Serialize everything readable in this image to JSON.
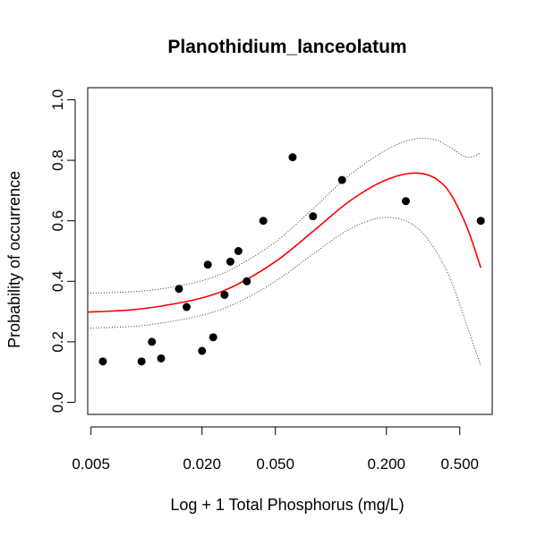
{
  "chart_data": {
    "type": "scatter",
    "title": "Planothidium_lanceolatum",
    "xlabel": "Log + 1 Total Phosphorus (mg/L)",
    "ylabel": "Probability of occurrence",
    "x_scale": "log",
    "xlim": [
      0.0048,
      0.75
    ],
    "ylim": [
      -0.04,
      1.04
    ],
    "x_ticks": [
      0.005,
      0.02,
      0.05,
      0.2,
      0.5
    ],
    "x_tick_labels": [
      "0.005",
      "0.020",
      "0.050",
      "0.200",
      "0.500"
    ],
    "y_ticks": [
      0.0,
      0.2,
      0.4,
      0.6,
      0.8,
      1.0
    ],
    "y_tick_labels": [
      "0.0",
      "0.2",
      "0.4",
      "0.6",
      "0.8",
      "1.0"
    ],
    "grid": false,
    "points": [
      {
        "x": 0.0058,
        "y": 0.135
      },
      {
        "x": 0.0094,
        "y": 0.135
      },
      {
        "x": 0.0107,
        "y": 0.2
      },
      {
        "x": 0.012,
        "y": 0.145
      },
      {
        "x": 0.015,
        "y": 0.375
      },
      {
        "x": 0.0165,
        "y": 0.315
      },
      {
        "x": 0.02,
        "y": 0.17
      },
      {
        "x": 0.0215,
        "y": 0.455
      },
      {
        "x": 0.023,
        "y": 0.215
      },
      {
        "x": 0.0265,
        "y": 0.355
      },
      {
        "x": 0.0285,
        "y": 0.465
      },
      {
        "x": 0.0315,
        "y": 0.5
      },
      {
        "x": 0.035,
        "y": 0.4
      },
      {
        "x": 0.043,
        "y": 0.6
      },
      {
        "x": 0.062,
        "y": 0.81
      },
      {
        "x": 0.08,
        "y": 0.615
      },
      {
        "x": 0.115,
        "y": 0.735
      },
      {
        "x": 0.255,
        "y": 0.665
      },
      {
        "x": 0.65,
        "y": 0.6
      }
    ],
    "series": [
      {
        "role": "fit",
        "color": "#ff0000",
        "style": "solid",
        "x": [
          0.0048,
          0.008,
          0.012,
          0.02,
          0.03,
          0.05,
          0.08,
          0.12,
          0.17,
          0.22,
          0.27,
          0.32,
          0.38,
          0.45,
          0.55,
          0.65
        ],
        "y": [
          0.298,
          0.305,
          0.318,
          0.345,
          0.385,
          0.465,
          0.565,
          0.655,
          0.715,
          0.745,
          0.757,
          0.755,
          0.735,
          0.685,
          0.575,
          0.445
        ]
      },
      {
        "role": "upper-ci",
        "color": "#333333",
        "style": "dotted",
        "x": [
          0.0048,
          0.008,
          0.012,
          0.02,
          0.03,
          0.05,
          0.08,
          0.12,
          0.17,
          0.22,
          0.27,
          0.32,
          0.38,
          0.45,
          0.55,
          0.65
        ],
        "y": [
          0.36,
          0.365,
          0.375,
          0.402,
          0.445,
          0.53,
          0.64,
          0.74,
          0.808,
          0.848,
          0.868,
          0.873,
          0.865,
          0.84,
          0.81,
          0.825
        ]
      },
      {
        "role": "lower-ci",
        "color": "#333333",
        "style": "dotted",
        "x": [
          0.0048,
          0.008,
          0.012,
          0.02,
          0.03,
          0.05,
          0.08,
          0.12,
          0.17,
          0.22,
          0.27,
          0.32,
          0.38,
          0.45,
          0.55,
          0.65
        ],
        "y": [
          0.245,
          0.25,
          0.262,
          0.288,
          0.325,
          0.4,
          0.49,
          0.565,
          0.605,
          0.61,
          0.592,
          0.555,
          0.49,
          0.4,
          0.25,
          0.12
        ]
      }
    ]
  }
}
